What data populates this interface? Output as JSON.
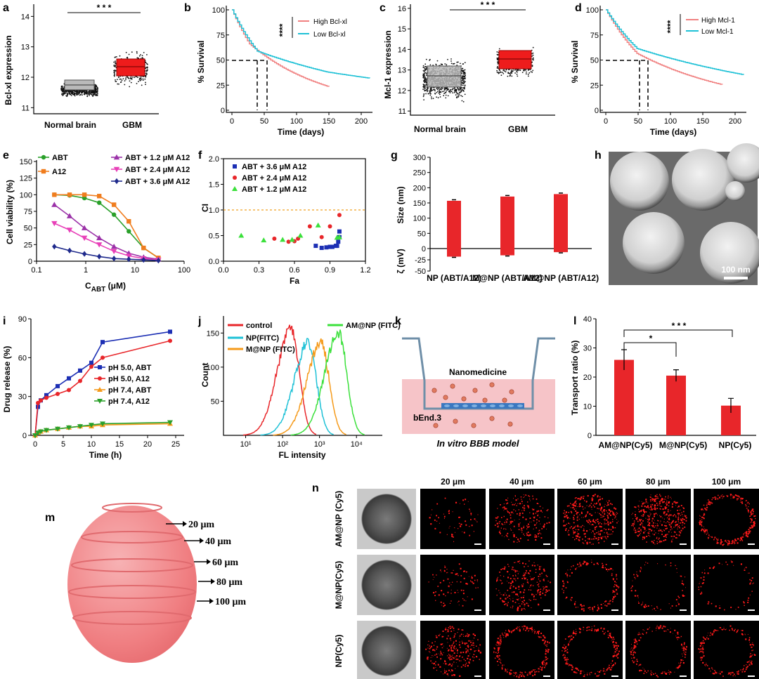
{
  "panels": {
    "a": {
      "letter": "a",
      "ylabel": "Bcl-xl expression",
      "categories": [
        "Normal brain",
        "GBM"
      ],
      "yticks": [
        "11",
        "12",
        "13",
        "14"
      ],
      "sig": "* * *"
    },
    "b": {
      "letter": "b",
      "ylabel": "% Survival",
      "xlabel": "Time (days)",
      "xticks": [
        "0",
        "50",
        "100",
        "150",
        "200"
      ],
      "yticks": [
        "0",
        "25",
        "50",
        "75",
        "100"
      ],
      "legend": [
        "High Bcl-xl",
        "Low Bcl-xl"
      ],
      "sig": "****"
    },
    "c": {
      "letter": "c",
      "ylabel": "Mcl-1 expression",
      "categories": [
        "Normal brain",
        "GBM"
      ],
      "yticks": [
        "11",
        "12",
        "13",
        "14",
        "15",
        "16"
      ],
      "sig": "* * *"
    },
    "d": {
      "letter": "d",
      "ylabel": "% Survival",
      "xlabel": "Time (days)",
      "xticks": [
        "0",
        "50",
        "100",
        "150",
        "200"
      ],
      "yticks": [
        "0",
        "25",
        "50",
        "75",
        "100"
      ],
      "legend": [
        "High Mcl-1",
        "Low Mcl-1"
      ],
      "sig": "****"
    },
    "e": {
      "letter": "e",
      "ylabel": "Cell viability (%)",
      "xlabel": "C",
      "xlabel_sub": "ABT",
      "xlabel_unit": " (μM)",
      "xticks": [
        "0.1",
        "1",
        "10",
        "100"
      ],
      "yticks": [
        "0",
        "25",
        "50",
        "75",
        "100",
        "125",
        "150"
      ],
      "legend": [
        "ABT",
        "A12",
        "ABT + 1.2 μM A12",
        "ABT + 2.4 μM A12",
        "ABT + 3.6 μM A12"
      ]
    },
    "f": {
      "letter": "f",
      "ylabel": "CI",
      "xlabel": "Fa",
      "xticks": [
        "0.0",
        "0.3",
        "0.6",
        "0.9",
        "1.2"
      ],
      "yticks": [
        "0.0",
        "0.5",
        "1.0",
        "1.5",
        "2.0"
      ],
      "legend": [
        "ABT + 3.6 μM A12",
        "ABT + 2.4 μM A12",
        "ABT + 1.2 μM A12"
      ]
    },
    "g": {
      "letter": "g",
      "ylabel_top": "Size (nm)",
      "ylabel_bottom": "ζ (mV)",
      "yticks": [
        "-50",
        "-25",
        "0",
        "50",
        "100",
        "150",
        "200",
        "250",
        "300"
      ],
      "categories": [
        "NP (ABT/A12)",
        "M@NP (ABT/A12)",
        "AM@NP (ABT/A12)"
      ]
    },
    "h": {
      "letter": "h",
      "scalebar": "100 nm"
    },
    "i": {
      "letter": "i",
      "ylabel": "Drug release (%)",
      "xlabel": "Time (h)",
      "xticks": [
        "0",
        "5",
        "10",
        "15",
        "20",
        "25"
      ],
      "yticks": [
        "0",
        "30",
        "60",
        "90"
      ],
      "legend": [
        "pH 5.0, ABT",
        "pH 5.0, A12",
        "pH 7.4, ABT",
        "pH 7.4, A12"
      ]
    },
    "j": {
      "letter": "j",
      "ylabel": "Count",
      "xlabel": "FL intensity",
      "xticks": [
        "10¹",
        "10²",
        "10³",
        "10⁴"
      ],
      "yticks": [
        "50",
        "100",
        "150"
      ],
      "legend": [
        "control",
        "NP(FITC)",
        "M@NP (FITC)",
        "AM@NP (FITC)"
      ]
    },
    "k": {
      "letter": "k",
      "label_top": "Nanomedicine",
      "label_cell": "bEnd.3",
      "caption": "In vitro BBB model"
    },
    "l": {
      "letter": "l",
      "ylabel": "Transport ratio (%)",
      "categories": [
        "AM@NP(Cy5)",
        "M@NP(Cy5)",
        "NP(Cy5)"
      ],
      "yticks": [
        "0",
        "10",
        "20",
        "30",
        "40"
      ],
      "sig1": "*",
      "sig2": "* * *"
    },
    "m": {
      "letter": "m",
      "depths": [
        "20 μm",
        "40 μm",
        "60 μm",
        "80 μm",
        "100 μm"
      ]
    },
    "n": {
      "letter": "n",
      "depths": [
        "20 μm",
        "40 μm",
        "60 μm",
        "80 μm",
        "100 μm"
      ],
      "rows": [
        "AM@NP (Cy5)",
        "M@NP(Cy5)",
        "NP(Cy5)"
      ]
    }
  },
  "colors": {
    "red": "#e8262a",
    "salmon": "#f08080",
    "cyan": "#1ec1d6",
    "green": "#2aa02a",
    "orange": "#f07d1e",
    "purple": "#9b32a8",
    "magenta": "#e840b8",
    "navy": "#1f2a8c",
    "blue": "#1c2fb4",
    "lime": "#3be03b",
    "amber": "#f59a1a",
    "pink": "#f6c4c8"
  },
  "chart_data": [
    {
      "type": "scatter",
      "panel": "a",
      "categories": [
        "Normal brain",
        "GBM"
      ],
      "box_median": [
        11.58,
        12.27
      ],
      "box_q1": [
        11.5,
        12.1
      ],
      "box_q3": [
        11.67,
        12.45
      ],
      "ylim": [
        10.8,
        14.4
      ]
    },
    {
      "type": "line",
      "panel": "b",
      "series": [
        {
          "name": "High Bcl-xl",
          "median_days": 40
        },
        {
          "name": "Low Bcl-xl",
          "median_days": 55
        }
      ],
      "xlim": [
        0,
        215
      ],
      "ylim": [
        0,
        105
      ]
    },
    {
      "type": "scatter",
      "panel": "c",
      "categories": [
        "Normal brain",
        "GBM"
      ],
      "box_median": [
        12.5,
        13.35
      ],
      "box_q1": [
        12.05,
        12.95
      ],
      "box_q3": [
        13.0,
        13.75
      ],
      "ylim": [
        10.8,
        16.2
      ]
    },
    {
      "type": "line",
      "panel": "d",
      "series": [
        {
          "name": "High Mcl-1",
          "median_days": 52
        },
        {
          "name": "Low Mcl-1",
          "median_days": 62
        }
      ],
      "xlim": [
        0,
        215
      ],
      "ylim": [
        0,
        105
      ]
    },
    {
      "type": "line",
      "panel": "e",
      "x": [
        0.23,
        0.47,
        0.94,
        1.88,
        3.75,
        7.5,
        15,
        30
      ],
      "series": [
        {
          "name": "ABT",
          "values": [
            100,
            99,
            95,
            88,
            70,
            45,
            20,
            5
          ]
        },
        {
          "name": "A12",
          "values": [
            100,
            100,
            100,
            98,
            85,
            60,
            20,
            5
          ]
        },
        {
          "name": "ABT + 1.2 μM A12",
          "values": [
            85,
            68,
            50,
            35,
            22,
            12,
            6,
            3
          ]
        },
        {
          "name": "ABT + 2.4 μM A12",
          "values": [
            57,
            47,
            35,
            25,
            15,
            8,
            4,
            2
          ]
        },
        {
          "name": "ABT + 3.6 μM A12",
          "values": [
            22,
            16,
            11,
            7,
            4,
            3,
            2,
            1
          ]
        }
      ]
    },
    {
      "type": "scatter",
      "panel": "f",
      "series": [
        {
          "name": "ABT + 3.6 μM A12",
          "points": [
            [
              0.78,
              0.3
            ],
            [
              0.83,
              0.26
            ],
            [
              0.87,
              0.27
            ],
            [
              0.9,
              0.28
            ],
            [
              0.92,
              0.28
            ],
            [
              0.95,
              0.3
            ],
            [
              0.96,
              0.3
            ],
            [
              0.97,
              0.38
            ],
            [
              0.98,
              0.47
            ],
            [
              0.98,
              0.58
            ]
          ]
        },
        {
          "name": "ABT + 2.4 μM A12",
          "points": [
            [
              0.43,
              0.44
            ],
            [
              0.55,
              0.38
            ],
            [
              0.6,
              0.39
            ],
            [
              0.63,
              0.44
            ],
            [
              0.73,
              0.68
            ],
            [
              0.83,
              0.47
            ],
            [
              0.9,
              0.68
            ],
            [
              0.98,
              0.9
            ]
          ]
        },
        {
          "name": "ABT + 1.2 μM A12",
          "points": [
            [
              0.15,
              0.5
            ],
            [
              0.34,
              0.41
            ],
            [
              0.5,
              0.42
            ],
            [
              0.58,
              0.42
            ],
            [
              0.65,
              0.5
            ],
            [
              0.8,
              0.7
            ],
            [
              0.96,
              0.46
            ],
            [
              0.98,
              0.47
            ]
          ]
        }
      ],
      "reference_line": 1.0
    },
    {
      "type": "bar",
      "panel": "g",
      "categories": [
        "NP (ABT/A12)",
        "M@NP (ABT/A12)",
        "AM@NP (ABT/A12)"
      ],
      "series": [
        {
          "name": "Size (nm)",
          "values": [
            157,
            171,
            179
          ]
        },
        {
          "name": "ζ (mV)",
          "values": [
            -18,
            -15,
            -8
          ]
        }
      ]
    },
    {
      "type": "line",
      "panel": "i",
      "x": [
        0.5,
        1,
        2,
        4,
        6,
        8,
        10,
        12,
        24
      ],
      "series": [
        {
          "name": "pH 5.0, ABT",
          "values": [
            22,
            27,
            31,
            38,
            44,
            50,
            56,
            72,
            80
          ]
        },
        {
          "name": "pH 5.0, A12",
          "values": [
            25,
            27,
            29,
            32,
            35,
            42,
            53,
            60,
            73
          ]
        },
        {
          "name": "pH 7.4, ABT",
          "values": [
            2,
            3,
            4,
            5,
            6,
            7,
            7,
            8,
            9
          ]
        },
        {
          "name": "pH 7.4, A12",
          "values": [
            2,
            3,
            4,
            5,
            6,
            7,
            8,
            9,
            10
          ]
        }
      ]
    },
    {
      "type": "line",
      "panel": "j",
      "series": [
        {
          "name": "control",
          "peak_x": 170,
          "peak_count": 155
        },
        {
          "name": "NP(FITC)",
          "peak_x": 500,
          "peak_count": 135
        },
        {
          "name": "M@NP (FITC)",
          "peak_x": 1100,
          "peak_count": 135
        },
        {
          "name": "AM@NP (FITC)",
          "peak_x": 3300,
          "peak_count": 150
        }
      ]
    },
    {
      "type": "bar",
      "panel": "l",
      "categories": [
        "AM@NP(Cy5)",
        "M@NP(Cy5)",
        "NP(Cy5)"
      ],
      "values": [
        25.9,
        20.5,
        10.2
      ],
      "errors": [
        3.5,
        2.0,
        2.5
      ],
      "ylim": [
        0,
        40
      ]
    }
  ]
}
